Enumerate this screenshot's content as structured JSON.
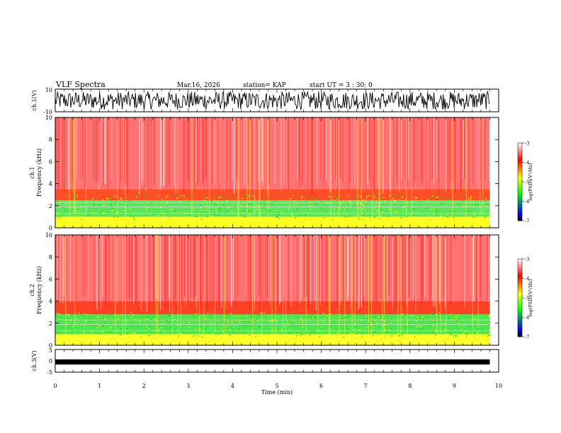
{
  "header": {
    "title": "VLF Spectra",
    "date": "Mar.16, 2026",
    "station": "station= KAP",
    "start_ut": "start UT =  3 : 30: 0"
  },
  "chart_data": [
    {
      "type": "line",
      "name": "waveform-ch1",
      "ylabel": "ch.1(V)",
      "ylim": [
        -10,
        10
      ],
      "yticks": [
        {
          "value": 10,
          "label": "10"
        },
        {
          "value": -10,
          "label": "-10"
        }
      ],
      "xlim": [
        0,
        10
      ],
      "description_signal": "dense oscillating waveform spanning approximately -8 to 8 V",
      "signal_extent_min": 9.8
    },
    {
      "type": "heatmap",
      "name": "spectrogram-ch1",
      "ylabel_line1": "ch.1",
      "ylabel_line2": "Frequency (kHz)",
      "ylim": [
        0,
        10
      ],
      "yticks": [
        0,
        2,
        4,
        6,
        8,
        10
      ],
      "xlim": [
        0,
        10
      ],
      "data_extent_min": 9.8,
      "colorbar": {
        "label": "log(PSD)(V²/Hz)",
        "range": [
          -7,
          -3
        ],
        "ticks": [
          -7,
          -6,
          -5,
          -4,
          -3
        ],
        "colors": [
          "#000000",
          "#0000ff",
          "#00ff00",
          "#ffff00",
          "#ff0000",
          "#ffffff"
        ]
      },
      "bands": [
        {
          "fmin": 0,
          "fmax": 1.0,
          "level": "high",
          "color": "#ffff00"
        },
        {
          "fmin": 1.0,
          "fmax": 2.5,
          "level": "medium-high",
          "color": "#40e040"
        },
        {
          "fmin": 2.5,
          "fmax": 3.5,
          "level": "medium",
          "color": "#ff3000"
        },
        {
          "fmin": 3.5,
          "fmax": 10,
          "level": "low",
          "color": "#ff0000"
        }
      ]
    },
    {
      "type": "heatmap",
      "name": "spectrogram-ch2",
      "ylabel_line1": "ch.2",
      "ylabel_line2": "Frequency (kHz)",
      "ylim": [
        0,
        10
      ],
      "yticks": [
        0,
        2,
        4,
        6,
        8,
        10
      ],
      "xlim": [
        0,
        10
      ],
      "data_extent_min": 9.8,
      "colorbar": {
        "label": "log(PSD)(V²/Hz)",
        "range": [
          -7,
          -3
        ],
        "ticks": [
          -7,
          -6,
          -5,
          -4,
          -3
        ],
        "colors": [
          "#000000",
          "#0000ff",
          "#00ff00",
          "#ffff00",
          "#ff0000",
          "#ffffff"
        ]
      },
      "bands": [
        {
          "fmin": 0,
          "fmax": 1.0,
          "level": "high",
          "color": "#ffff00"
        },
        {
          "fmin": 1.0,
          "fmax": 2.8,
          "level": "medium-high",
          "color": "#30e030"
        },
        {
          "fmin": 2.8,
          "fmax": 4.0,
          "level": "medium",
          "color": "#ff2000"
        },
        {
          "fmin": 4.0,
          "fmax": 10,
          "level": "low",
          "color": "#ff0000"
        }
      ]
    },
    {
      "type": "line",
      "name": "waveform-ch3",
      "ylabel": "ch.3(V)",
      "ylim": [
        -5,
        5
      ],
      "yticks": [
        {
          "value": 5,
          "label": "5"
        },
        {
          "value": 0,
          "label": "0"
        },
        {
          "value": -5,
          "label": "-5"
        }
      ],
      "xlim": [
        0,
        10
      ],
      "signal_level_v": -0.5,
      "signal_band_v": [
        -1.0,
        0.0
      ],
      "signal_extent_min": 9.8
    }
  ],
  "x_axis": {
    "label": "Time (min)",
    "range": [
      0,
      10
    ],
    "ticks": [
      0,
      1,
      2,
      3,
      4,
      5,
      6,
      7,
      8,
      9,
      10
    ]
  }
}
